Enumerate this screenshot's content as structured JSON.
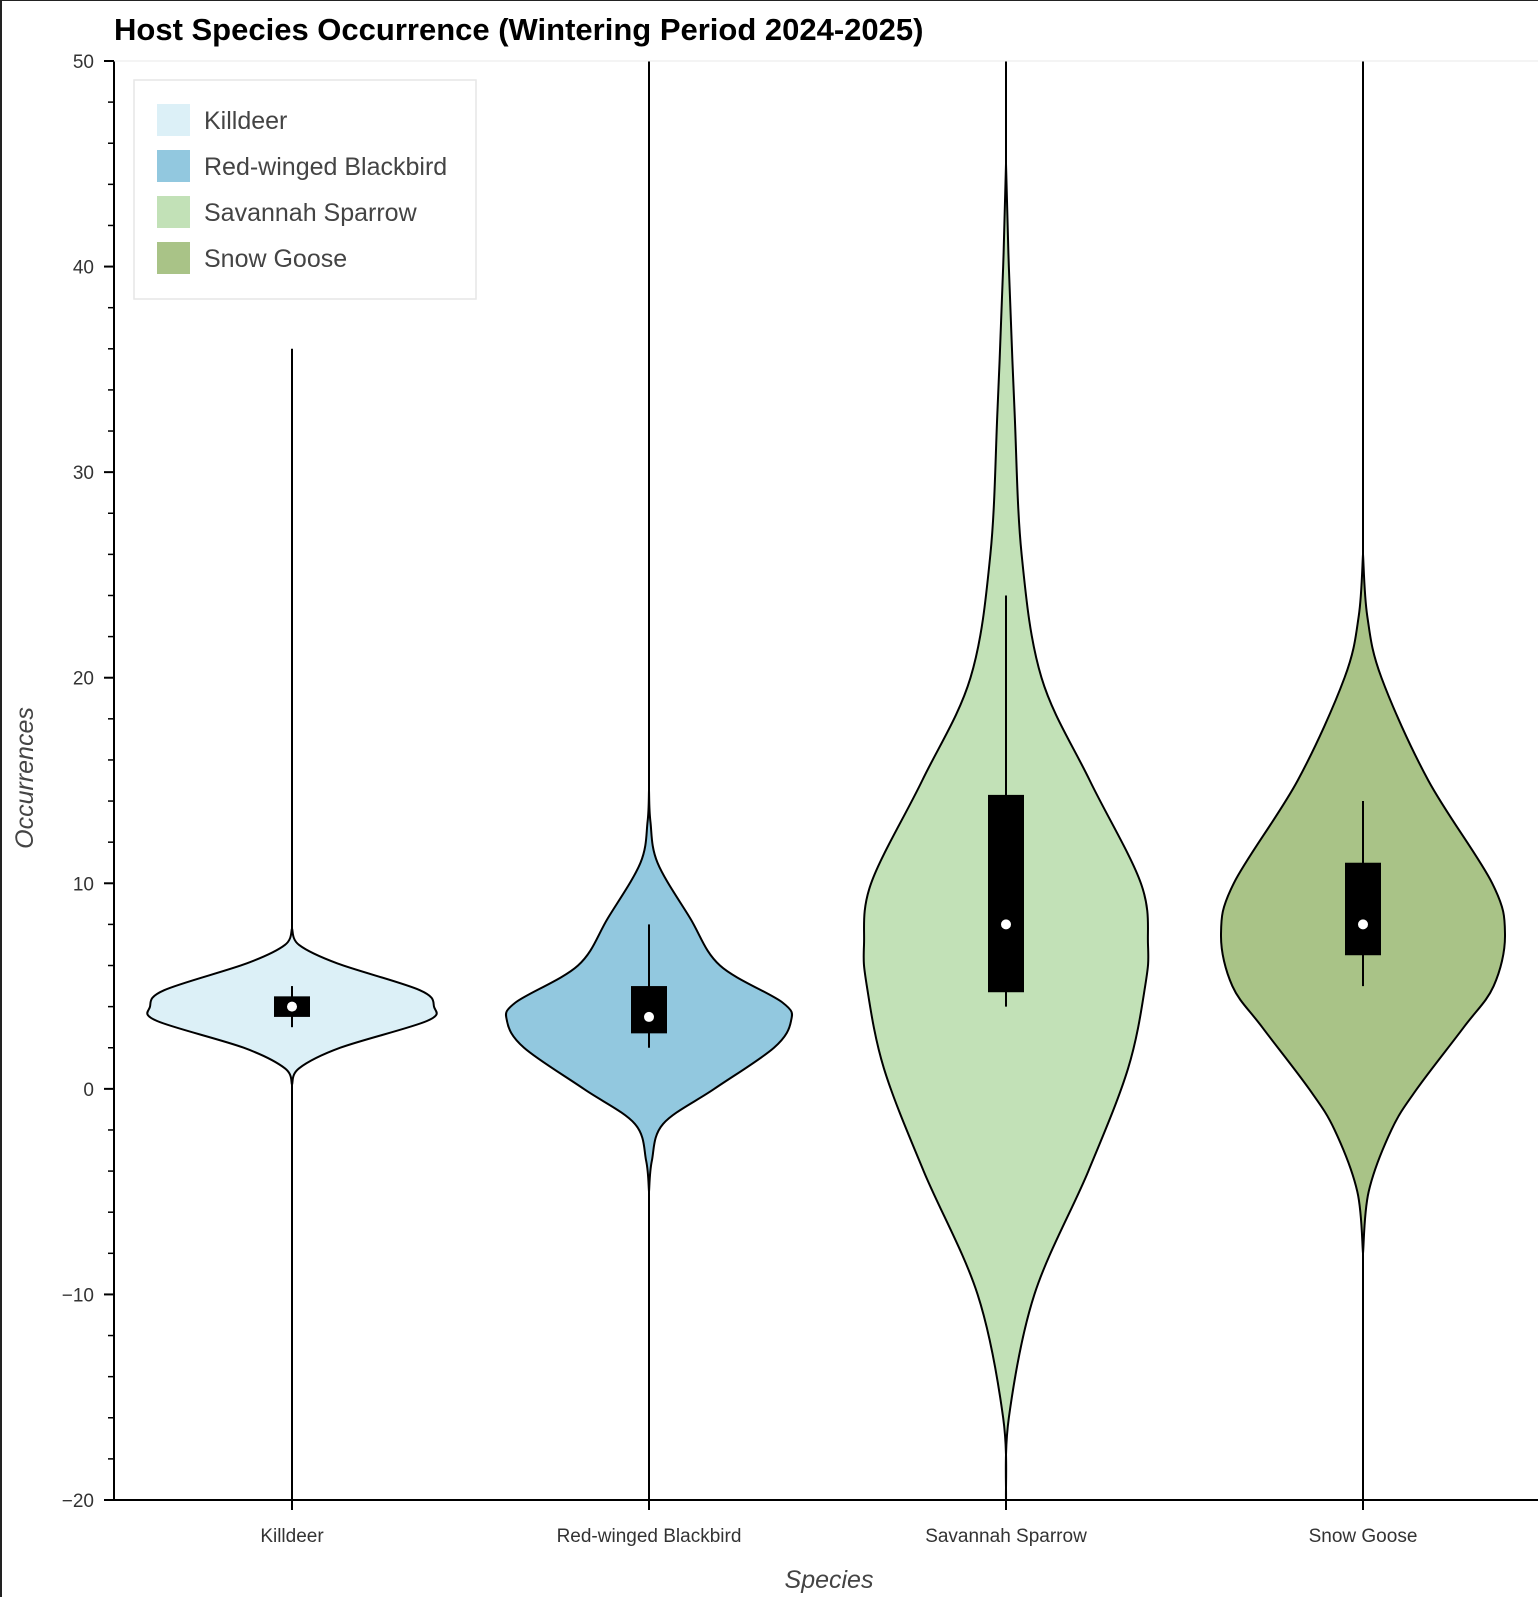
{
  "chart_data": {
    "type": "violin",
    "title": "Host Species Occurrence (Wintering Period 2024-2025)",
    "xlabel": "Species",
    "ylabel": "Occurrences",
    "ylim": [
      -20,
      50
    ],
    "y_ticks": [
      -20,
      -10,
      0,
      10,
      20,
      30,
      40,
      50
    ],
    "y_tick_labels": [
      "−20",
      "−10",
      "0",
      "10",
      "20",
      "30",
      "40",
      "50"
    ],
    "categories": [
      "Killdeer",
      "Red-winged Blackbird",
      "Savannah Sparrow",
      "Snow Goose"
    ],
    "legend": {
      "position": "top-left",
      "entries": [
        "Killdeer",
        "Red-winged Blackbird",
        "Savannah Sparrow",
        "Snow Goose"
      ]
    },
    "grid": false,
    "series": [
      {
        "name": "Killdeer",
        "color": "#dcf0f7",
        "range": [
          -20,
          36
        ],
        "box": {
          "q1": 3.5,
          "q3": 4.5,
          "median": 4,
          "whisker_low": 3,
          "whisker_high": 5
        },
        "density": [
          [
            0.2,
            0.0
          ],
          [
            1.0,
            0.05
          ],
          [
            2.0,
            0.34
          ],
          [
            3.3,
            0.95
          ],
          [
            4.0,
            1.0
          ],
          [
            4.8,
            0.9
          ],
          [
            6.1,
            0.32
          ],
          [
            7.0,
            0.05
          ],
          [
            7.8,
            0.0
          ]
        ]
      },
      {
        "name": "Red-winged Blackbird",
        "color": "#92c8df",
        "range": [
          -20,
          50
        ],
        "box": {
          "q1": 2.7,
          "q3": 5,
          "median": 3.5,
          "whisker_low": 2,
          "whisker_high": 8
        },
        "density": [
          [
            -5.0,
            0.0
          ],
          [
            -3.5,
            0.02
          ],
          [
            -1.7,
            0.1
          ],
          [
            0.0,
            0.46
          ],
          [
            2.0,
            0.88
          ],
          [
            3.3,
            1.0
          ],
          [
            4.2,
            0.94
          ],
          [
            6.0,
            0.5
          ],
          [
            8.3,
            0.29
          ],
          [
            11.0,
            0.06
          ],
          [
            13.0,
            0.01
          ],
          [
            14.5,
            0.0
          ]
        ]
      },
      {
        "name": "Savannah Sparrow",
        "color": "#c2e1b7",
        "range": [
          -20,
          50
        ],
        "box": {
          "q1": 4.7,
          "q3": 14.3,
          "median": 8,
          "whisker_low": 4,
          "whisker_high": 24
        },
        "density": [
          [
            -20.0,
            0.0
          ],
          [
            -16.0,
            0.02
          ],
          [
            -10.0,
            0.2
          ],
          [
            -4.0,
            0.58
          ],
          [
            1.0,
            0.86
          ],
          [
            5.0,
            0.98
          ],
          [
            7.0,
            1.0
          ],
          [
            10.0,
            0.95
          ],
          [
            15.0,
            0.59
          ],
          [
            20.0,
            0.25
          ],
          [
            26.0,
            0.11
          ],
          [
            33.0,
            0.06
          ],
          [
            40.0,
            0.02
          ],
          [
            45.0,
            0.0
          ]
        ]
      },
      {
        "name": "Snow Goose",
        "color": "#a9c387",
        "range": [
          -20,
          50
        ],
        "box": {
          "q1": 6.5,
          "q3": 11,
          "median": 8,
          "whisker_low": 5,
          "whisker_high": 14
        },
        "density": [
          [
            -8.0,
            0.0
          ],
          [
            -5.0,
            0.04
          ],
          [
            -2.0,
            0.2
          ],
          [
            0.0,
            0.38
          ],
          [
            3.0,
            0.71
          ],
          [
            5.0,
            0.92
          ],
          [
            7.5,
            1.0
          ],
          [
            10.0,
            0.91
          ],
          [
            15.0,
            0.46
          ],
          [
            20.0,
            0.13
          ],
          [
            23.0,
            0.03
          ],
          [
            26.0,
            0.0
          ]
        ]
      }
    ]
  }
}
